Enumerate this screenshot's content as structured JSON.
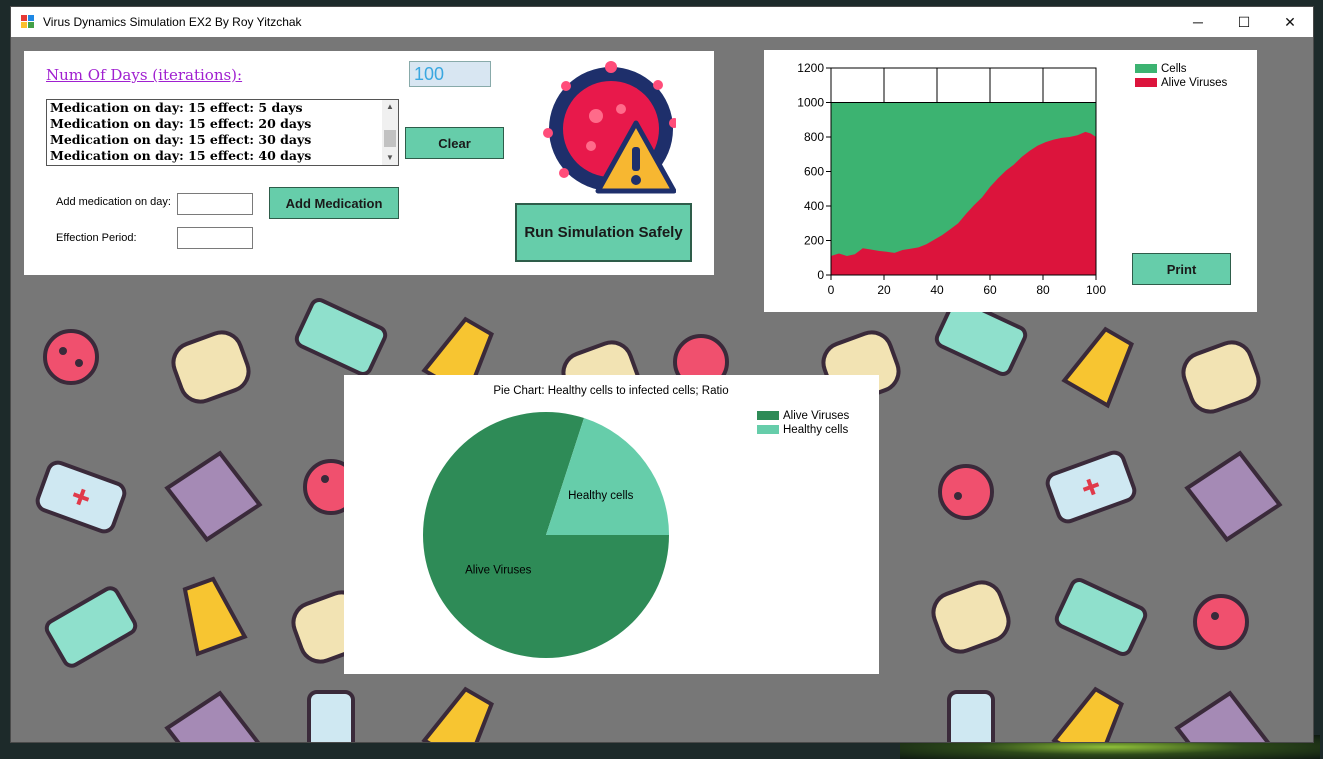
{
  "window": {
    "title": "Virus Dynamics Simulation EX2 By Roy Yitzchak",
    "minimize_glyph": "─",
    "maximize_glyph": "☐",
    "close_glyph": "✕"
  },
  "controls": {
    "days_label": "Num Of Days (iterations):",
    "days_value": "100",
    "medication_list": [
      "Medication on day: 15 effect: 5 days",
      "Medication on day: 15 effect: 20 days",
      "Medication on day: 15 effect: 30 days",
      "Medication on day: 15 effect: 40 days"
    ],
    "clear_button": "Clear",
    "add_day_label": "Add medication on day:",
    "add_day_value": "",
    "effect_period_label": "Effection Period:",
    "effect_period_value": "",
    "add_medication_button": "Add Medication",
    "run_button": "Run Simulation Safely",
    "print_button": "Print"
  },
  "icons": [
    "virus-warning-icon",
    "app-icon",
    "scroll-up-icon",
    "scroll-down-icon"
  ],
  "colors": {
    "accent_button": "#66cdaa",
    "cells_series": "#3cb371",
    "viruses_series": "#dc143c",
    "pie_viruses": "#2e8b57",
    "pie_healthy": "#66cdaa"
  },
  "chart_data": [
    {
      "type": "area",
      "title": "",
      "xlabel": "",
      "ylabel": "",
      "xlim": [
        0,
        100
      ],
      "ylim": [
        0,
        1200
      ],
      "x_ticks": [
        "0",
        "20",
        "40",
        "60",
        "80",
        "100"
      ],
      "y_ticks": [
        "0",
        "200",
        "400",
        "600",
        "800",
        "1000",
        "1200"
      ],
      "grid": true,
      "legend_position": "top-right",
      "series": [
        {
          "name": "Cells",
          "x": [
            0,
            100
          ],
          "values": [
            1000,
            1000
          ]
        },
        {
          "name": "Alive Viruses",
          "x": [
            0,
            3,
            6,
            9,
            12,
            15,
            18,
            21,
            24,
            27,
            30,
            33,
            36,
            39,
            42,
            45,
            48,
            51,
            54,
            57,
            60,
            63,
            66,
            69,
            72,
            75,
            78,
            81,
            84,
            87,
            90,
            93,
            96,
            98,
            100
          ],
          "values": [
            110,
            125,
            110,
            120,
            155,
            148,
            140,
            135,
            128,
            145,
            152,
            160,
            178,
            205,
            232,
            265,
            300,
            355,
            405,
            450,
            510,
            560,
            605,
            640,
            685,
            720,
            750,
            770,
            785,
            795,
            800,
            810,
            830,
            820,
            800
          ]
        }
      ]
    },
    {
      "type": "pie",
      "title": "Pie Chart: Healthy cells to infected cells; Ratio",
      "legend_position": "top-right",
      "slices": [
        {
          "label": "Alive Viruses",
          "value": 80
        },
        {
          "label": "Healthy cells",
          "value": 20
        }
      ]
    }
  ]
}
